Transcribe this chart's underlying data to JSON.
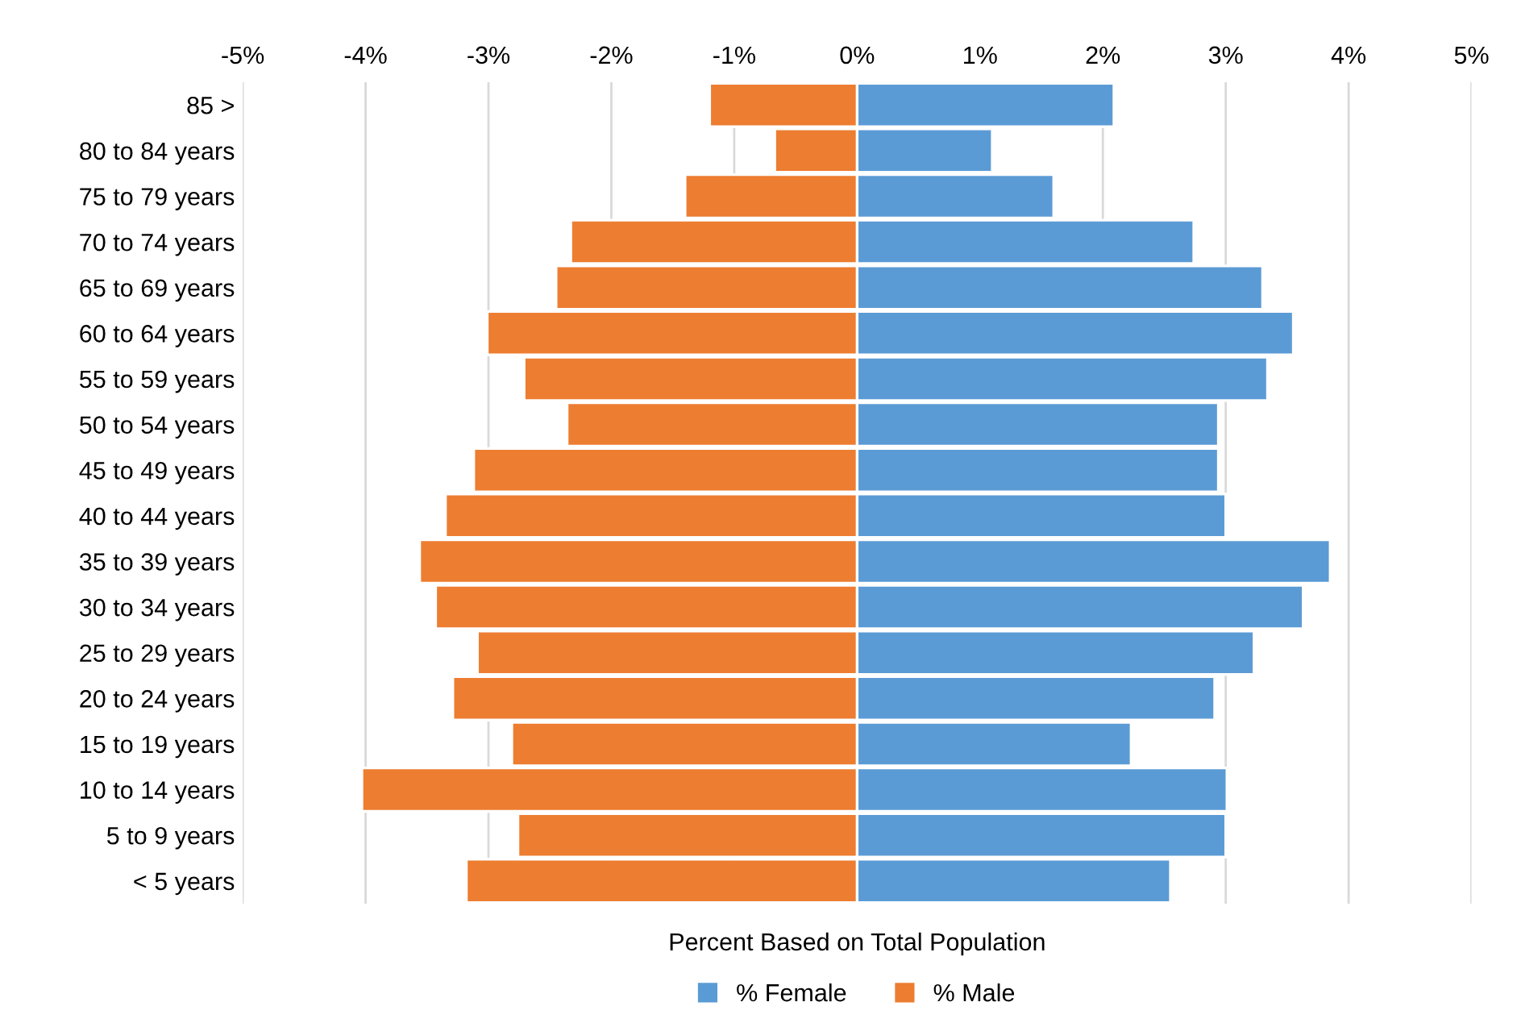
{
  "chart_data": {
    "type": "bar",
    "orientation": "horizontal",
    "xlabel": "Percent Based on Total Population",
    "categories": [
      "85 >",
      "80 to 84 years",
      "75 to 79 years",
      "70 to 74 years",
      "65 to 69 years",
      "60 to 64 years",
      "55 to 59 years",
      "50 to 54 years",
      "45 to 49 years",
      "40 to 44 years",
      "35 to 39 years",
      "30 to 34 years",
      "25 to 29 years",
      "20 to 24 years",
      "15 to 19 years",
      "10 to 14 years",
      "5 to 9 years",
      "< 5 years"
    ],
    "series": [
      {
        "name": "% Female",
        "color": "#5b9bd5",
        "values": [
          2.09,
          1.1,
          1.6,
          2.74,
          3.3,
          3.55,
          3.34,
          2.94,
          2.94,
          3.0,
          3.85,
          3.63,
          3.23,
          2.91,
          2.23,
          3.01,
          3.0,
          2.55
        ]
      },
      {
        "name": "% Male",
        "color": "#ed7d31",
        "values": [
          -1.2,
          -0.67,
          -1.4,
          -2.33,
          -2.45,
          -3.01,
          -2.71,
          -2.36,
          -3.12,
          -3.35,
          -3.56,
          -3.43,
          -3.09,
          -3.29,
          -2.81,
          -4.03,
          -2.76,
          -3.18
        ]
      }
    ],
    "xlim": [
      -5,
      5
    ],
    "xticks": [
      {
        "value": -5,
        "label": "-5%"
      },
      {
        "value": -4,
        "label": "-4%"
      },
      {
        "value": -3,
        "label": "-3%"
      },
      {
        "value": -2,
        "label": "-2%"
      },
      {
        "value": -1,
        "label": "-1%"
      },
      {
        "value": 0,
        "label": "0%"
      },
      {
        "value": 1,
        "label": "1%"
      },
      {
        "value": 2,
        "label": "2%"
      },
      {
        "value": 3,
        "label": "3%"
      },
      {
        "value": 4,
        "label": "4%"
      },
      {
        "value": 5,
        "label": "5%"
      }
    ],
    "stacked": true,
    "grid": "x",
    "legend": "bottom"
  }
}
